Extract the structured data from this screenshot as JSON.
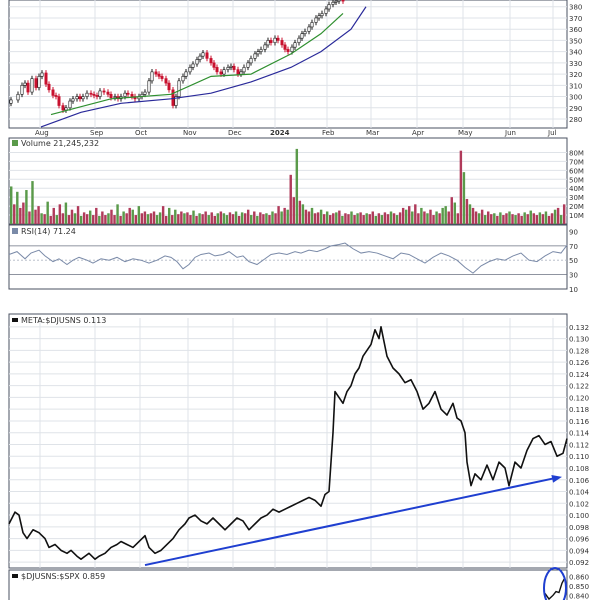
{
  "colors": {
    "background": "#ffffff",
    "plot_bg": "#ffffff",
    "frame": "#4a5060",
    "grid": "#dfe3e8",
    "up": "#2e8b2e",
    "down": "#c8102e",
    "ma_short": "#2f8f2f",
    "ma_long": "#2a2a9a",
    "vol_up": "#5a9a4a",
    "vol_down": "#b03a5a",
    "rsi_line": "#7a8aa8",
    "rsi_fill": "#6f8ec0",
    "ratio_line": "#111111",
    "trend_arrow": "#1f3fd0",
    "highlight_circle": "#1f3fd0"
  },
  "panels": {
    "volume_label": "Volume 21,245,232",
    "rsi_label": "RSI(14) 71.24",
    "ratio_label": "META:$DJUSNS 0.113",
    "bottom_label": "$DJUSNS:$SPX 0.859"
  },
  "chart_data": [
    {
      "type": "candlestick",
      "name": "price",
      "months": [
        "Aug",
        "Sep",
        "Oct",
        "Nov",
        "Dec",
        "2024",
        "Feb",
        "Mar",
        "Apr",
        "May",
        "Jun",
        "Jul"
      ],
      "y_ticks": [
        280,
        290,
        300,
        310,
        320,
        330,
        340,
        350,
        360,
        370,
        380
      ],
      "ylim": [
        272,
        386
      ],
      "x": [
        0,
        7,
        11,
        14,
        17,
        21,
        25,
        28,
        31,
        35,
        38,
        42,
        45,
        48,
        52,
        55,
        59,
        62,
        66,
        69,
        72,
        76,
        80,
        83,
        86,
        89,
        93,
        97,
        100,
        104,
        107,
        110,
        114,
        117,
        121,
        124,
        128,
        131,
        134,
        138,
        141,
        145,
        148,
        151,
        155,
        158,
        162,
        165,
        168,
        172,
        175,
        179,
        182,
        186,
        189,
        192,
        196,
        200,
        203,
        206,
        210,
        213,
        217,
        220,
        223,
        227,
        230,
        233,
        237,
        240,
        244,
        247,
        250,
        254,
        257,
        260,
        264,
        267,
        271,
        274,
        277,
        281,
        284,
        288,
        291,
        294,
        298,
        301,
        305,
        308,
        311,
        315,
        318,
        322,
        325,
        328,
        332
      ],
      "close": [
        297,
        302,
        310,
        312,
        304,
        316,
        308,
        318,
        321,
        311,
        306,
        301,
        300,
        292,
        288,
        290,
        296,
        298,
        300,
        298,
        300,
        303,
        302,
        301,
        300,
        305,
        304,
        302,
        299,
        300,
        298,
        300,
        303,
        302,
        300,
        298,
        300,
        302,
        304,
        314,
        322,
        320,
        318,
        316,
        312,
        306,
        292,
        300,
        314,
        318,
        322,
        326,
        329,
        333,
        336,
        339,
        334,
        330,
        326,
        322,
        320,
        324,
        326,
        327,
        324,
        320,
        322,
        326,
        330,
        334,
        338,
        340,
        342,
        346,
        350,
        348,
        352,
        350,
        346,
        342,
        340,
        344,
        348,
        352,
        356,
        358,
        362,
        366,
        370,
        372,
        374,
        378,
        382,
        384,
        385,
        386,
        385
      ],
      "ma_short": {
        "x": [
          40,
          100,
          160,
          200,
          240,
          280,
          310,
          332
        ],
        "y": [
          284,
          298,
          302,
          318,
          320,
          338,
          356,
          374
        ]
      },
      "ma_long": {
        "x": [
          30,
          70,
          110,
          160,
          200,
          240,
          280,
          310,
          340,
          355
        ],
        "y": [
          273,
          286,
          294,
          298,
          303,
          313,
          326,
          340,
          360,
          380
        ]
      }
    },
    {
      "type": "bar",
      "name": "volume",
      "y_ticks": [
        "80M",
        "70M",
        "60M",
        "50M",
        "40M",
        "30M",
        "20M",
        "10M"
      ],
      "ylim": [
        0,
        85
      ],
      "values": [
        42,
        22,
        36,
        18,
        24,
        38,
        14,
        48,
        16,
        20,
        12,
        11,
        25,
        9,
        18,
        10,
        22,
        12,
        24,
        10,
        16,
        12,
        20,
        9,
        13,
        11,
        15,
        10,
        18,
        9,
        14,
        10,
        12,
        16,
        10,
        22,
        9,
        14,
        12,
        18,
        16,
        10,
        20,
        12,
        14,
        11,
        12,
        14,
        10,
        13,
        20,
        9,
        18,
        10,
        16,
        11,
        14,
        12,
        13,
        10,
        15,
        9,
        12,
        11,
        14,
        10,
        13,
        9,
        12,
        14,
        12,
        10,
        13,
        11,
        14,
        9,
        13,
        12,
        16,
        10,
        14,
        9,
        13,
        11,
        12,
        10,
        14,
        12,
        20,
        14,
        18,
        16,
        55,
        30,
        84,
        26,
        22,
        16,
        14,
        18,
        12,
        13,
        16,
        11,
        14,
        10,
        12,
        13,
        15,
        9,
        12,
        11,
        14,
        10,
        12,
        13,
        10,
        12,
        11,
        14,
        9,
        12,
        10,
        13,
        11,
        14,
        12,
        10,
        13,
        18,
        16,
        20,
        14,
        22,
        12,
        18,
        14,
        12,
        16,
        10,
        14,
        12,
        18,
        20,
        14,
        30,
        24,
        12,
        82,
        58,
        28,
        22,
        18,
        14,
        12,
        16,
        10,
        14,
        11,
        12,
        9,
        13,
        10,
        12,
        14,
        11,
        10,
        12,
        9,
        13,
        11,
        15,
        12,
        10,
        13,
        11,
        14,
        9,
        12,
        16,
        18,
        10,
        22
      ],
      "up": [
        1,
        0,
        1,
        0,
        0,
        1,
        0,
        1,
        0,
        0,
        1,
        0,
        1,
        0,
        0,
        1,
        0,
        0,
        1,
        0,
        0,
        1,
        0,
        1,
        0,
        0,
        1,
        0,
        0,
        1,
        0,
        0,
        1,
        0,
        0,
        1,
        0,
        1,
        0,
        0,
        1,
        0,
        1,
        0,
        0,
        1,
        0,
        0,
        1,
        1,
        0,
        0,
        1,
        0,
        1,
        0,
        0,
        1,
        0,
        0,
        1,
        0,
        1,
        0,
        0,
        1,
        0,
        0,
        1,
        0,
        1,
        1,
        0,
        0,
        1,
        0,
        1,
        0,
        0,
        1,
        0,
        1,
        0,
        0,
        1,
        0,
        1,
        0,
        0,
        1,
        0,
        1,
        0,
        0,
        1,
        0,
        1,
        0,
        0,
        1,
        0,
        0,
        1,
        0,
        1,
        0,
        0,
        1,
        0,
        1,
        0,
        0,
        1,
        0,
        1,
        0,
        0,
        1,
        0,
        0,
        1,
        0,
        1,
        0,
        0,
        1,
        0,
        1,
        0,
        0,
        1,
        0,
        1,
        0,
        0,
        1,
        0,
        1,
        0,
        0,
        1,
        0,
        1,
        1,
        0,
        0,
        1,
        0,
        0,
        1,
        0,
        1,
        0,
        0,
        1,
        0,
        1,
        0,
        0,
        1,
        0,
        1,
        0,
        0,
        1,
        0,
        1,
        0,
        0,
        1,
        0,
        1,
        0,
        0,
        1,
        0,
        1,
        0,
        0,
        1,
        0,
        1
      ]
    },
    {
      "type": "line",
      "name": "rsi",
      "y_ticks": [
        90,
        70,
        50,
        30,
        10
      ],
      "ylim": [
        0,
        95
      ],
      "ref_lines": [
        70,
        30
      ],
      "x": [
        0,
        8,
        16,
        22,
        30,
        36,
        44,
        50,
        58,
        64,
        70,
        78,
        84,
        92,
        100,
        108,
        116,
        124,
        132,
        140,
        148,
        156,
        162,
        168,
        174,
        180,
        186,
        192,
        200,
        206,
        214,
        220,
        228,
        234,
        240,
        248,
        256,
        262,
        270,
        278,
        286,
        292,
        300,
        308,
        316,
        322,
        330,
        336,
        344,
        352,
        360,
        368,
        376,
        384,
        392,
        400,
        408,
        416,
        424,
        432,
        440,
        448,
        456,
        464,
        472,
        480,
        488,
        496,
        504,
        512,
        520,
        528,
        536,
        544,
        552,
        558
      ],
      "values": [
        58,
        62,
        52,
        60,
        64,
        56,
        48,
        52,
        44,
        50,
        54,
        50,
        46,
        52,
        50,
        54,
        48,
        52,
        50,
        46,
        50,
        56,
        54,
        48,
        38,
        44,
        54,
        58,
        60,
        56,
        58,
        62,
        54,
        56,
        48,
        44,
        52,
        58,
        60,
        58,
        62,
        60,
        64,
        62,
        66,
        70,
        72,
        74,
        66,
        60,
        62,
        60,
        56,
        52,
        60,
        58,
        52,
        46,
        54,
        60,
        56,
        50,
        40,
        32,
        42,
        48,
        52,
        50,
        56,
        60,
        50,
        48,
        56,
        62,
        60,
        71
      ]
    },
    {
      "type": "line",
      "name": "ratio",
      "y_ticks": [
        0.132,
        0.13,
        0.128,
        0.126,
        0.124,
        0.122,
        0.12,
        0.118,
        0.116,
        0.114,
        0.112,
        0.11,
        0.108,
        0.106,
        0.104,
        0.102,
        0.1,
        0.098,
        0.096,
        0.094,
        0.092
      ],
      "ylim": [
        0.091,
        0.1335
      ],
      "x": [
        0,
        6,
        10,
        14,
        18,
        24,
        30,
        36,
        40,
        46,
        52,
        58,
        62,
        68,
        72,
        76,
        80,
        86,
        90,
        96,
        102,
        108,
        112,
        118,
        124,
        130,
        136,
        140,
        146,
        152,
        158,
        164,
        170,
        176,
        180,
        186,
        192,
        198,
        204,
        210,
        216,
        222,
        228,
        234,
        240,
        246,
        252,
        258,
        264,
        270,
        276,
        282,
        288,
        294,
        300,
        306,
        312,
        316,
        320,
        324,
        326,
        330,
        334,
        338,
        342,
        346,
        350,
        354,
        358,
        362,
        366,
        370,
        372,
        378,
        384,
        390,
        396,
        402,
        408,
        414,
        420,
        426,
        432,
        438,
        444,
        448,
        452,
        456,
        458,
        462,
        466,
        472,
        478,
        484,
        490,
        496,
        500,
        506,
        512,
        518,
        524,
        530,
        536,
        542,
        548,
        554,
        558
      ],
      "values": [
        0.0985,
        0.1005,
        0.1,
        0.097,
        0.096,
        0.0975,
        0.097,
        0.096,
        0.0945,
        0.095,
        0.094,
        0.0935,
        0.094,
        0.093,
        0.0925,
        0.093,
        0.0935,
        0.0925,
        0.093,
        0.0935,
        0.0945,
        0.095,
        0.0955,
        0.095,
        0.0945,
        0.0955,
        0.0965,
        0.0945,
        0.0935,
        0.094,
        0.095,
        0.096,
        0.0975,
        0.0985,
        0.0995,
        0.1,
        0.099,
        0.0985,
        0.0995,
        0.0985,
        0.0975,
        0.0985,
        0.0995,
        0.099,
        0.0975,
        0.0985,
        0.0995,
        0.1,
        0.101,
        0.1005,
        0.101,
        0.1015,
        0.102,
        0.1025,
        0.103,
        0.1025,
        0.1015,
        0.1035,
        0.104,
        0.114,
        0.121,
        0.12,
        0.119,
        0.121,
        0.122,
        0.124,
        0.125,
        0.127,
        0.128,
        0.129,
        0.1315,
        0.13,
        0.132,
        0.127,
        0.125,
        0.124,
        0.1225,
        0.123,
        0.121,
        0.118,
        0.119,
        0.121,
        0.118,
        0.117,
        0.119,
        0.1165,
        0.116,
        0.114,
        0.109,
        0.105,
        0.107,
        0.106,
        0.1085,
        0.106,
        0.109,
        0.108,
        0.105,
        0.109,
        0.108,
        0.111,
        0.113,
        0.1135,
        0.112,
        0.1125,
        0.11,
        0.1105,
        0.113
      ],
      "trend_arrow": {
        "from": [
          145,
          0.0915
        ],
        "to": [
          562,
          0.1065
        ]
      }
    },
    {
      "type": "line",
      "name": "bottom_ratio",
      "y_ticks": [
        0.86,
        0.85,
        0.84
      ],
      "ylim": [
        0.835,
        0.865
      ],
      "x": [
        545,
        549,
        553,
        556,
        559,
        562,
        565
      ],
      "values": [
        0.842,
        0.836,
        0.84,
        0.844,
        0.843,
        0.853,
        0.859
      ]
    }
  ]
}
